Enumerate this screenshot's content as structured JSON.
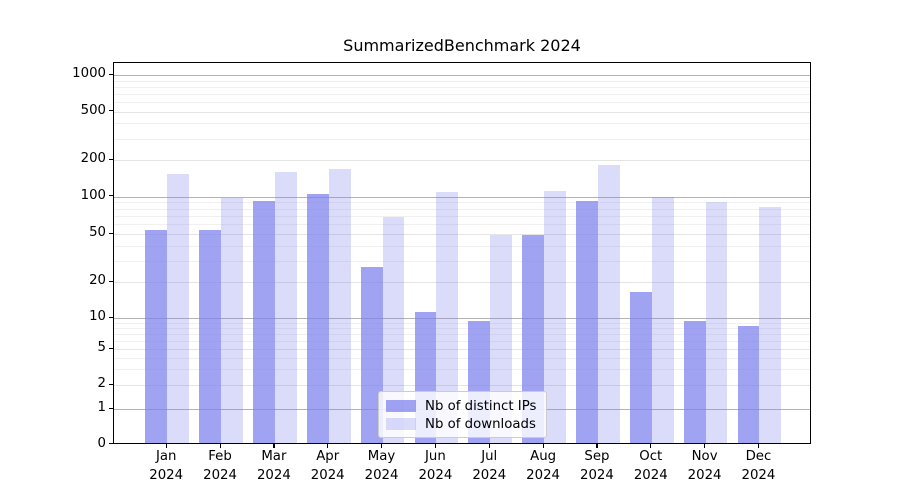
{
  "chart": {
    "title": "SummarizedBenchmark 2024"
  },
  "chart_data": {
    "type": "bar",
    "title": "SummarizedBenchmark 2024",
    "xlabel": "",
    "ylabel": "",
    "yscale": "symlog",
    "ylim": [
      0,
      1250
    ],
    "grid": "both",
    "legend_position": "lower center",
    "categories": [
      "Jan",
      "Feb",
      "Mar",
      "Apr",
      "May",
      "Jun",
      "Jul",
      "Aug",
      "Sep",
      "Oct",
      "Nov",
      "Dec"
    ],
    "x_year_line": "2024",
    "ytick_labels": [
      "1000",
      "500",
      "200",
      "100",
      "50",
      "20",
      "10",
      "5",
      "2",
      "1",
      "0"
    ],
    "ytick_values": [
      1000,
      500,
      200,
      100,
      50,
      20,
      10,
      5,
      2,
      1,
      0
    ],
    "series": [
      {
        "name": "Nb of distinct IPs",
        "color": "rgba(124,128,237,0.72)",
        "values": [
          52,
          52,
          90,
          101,
          26,
          11,
          9,
          48,
          90,
          16,
          9,
          8
        ]
      },
      {
        "name": "Nb of downloads",
        "color": "rgba(124,128,237,0.28)",
        "values": [
          148,
          95,
          154,
          163,
          66,
          106,
          48,
          107,
          176,
          96,
          88,
          80
        ]
      }
    ]
  }
}
